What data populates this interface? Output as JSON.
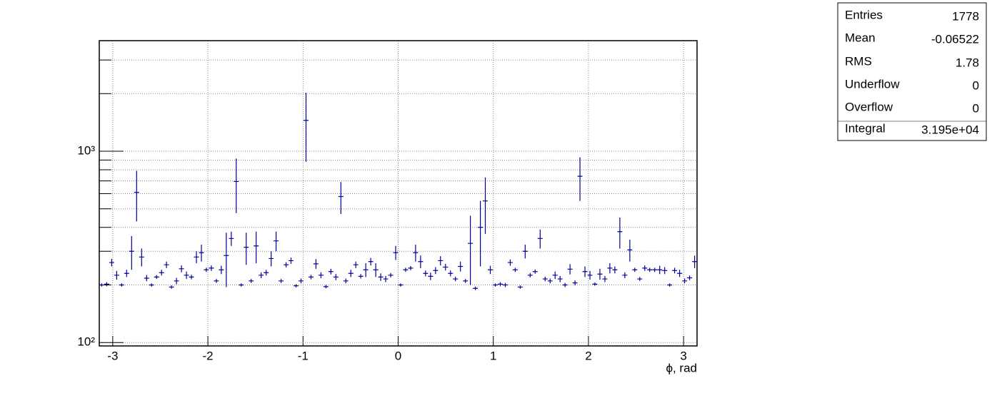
{
  "chart_data": {
    "type": "histogram_errors",
    "x_label": "ϕ, rad",
    "color": "#000099",
    "log_y": true,
    "grid": true,
    "xlim": [
      -3.1416,
      3.1416
    ],
    "ylim": [
      96,
      3785
    ],
    "xticks": [
      -3,
      -2,
      -1,
      0,
      1,
      2,
      3
    ],
    "yticks": [
      {
        "value": 100,
        "label": "10²"
      },
      {
        "value": 1000,
        "label": "10³"
      }
    ],
    "yminor_ticks": [
      200,
      300,
      400,
      500,
      600,
      700,
      800,
      900,
      2000,
      3000
    ],
    "bins": [
      -3.142,
      -3.09,
      -3.037,
      -2.985,
      -2.932,
      -2.88,
      -2.828,
      -2.775,
      -2.723,
      -2.67,
      -2.618,
      -2.566,
      -2.513,
      -2.461,
      -2.409,
      -2.356,
      -2.304,
      -2.251,
      -2.199,
      -2.147,
      -2.094,
      -2.042,
      -1.99,
      -1.937,
      -1.885,
      -1.833,
      -1.78,
      -1.728,
      -1.676,
      -1.623,
      -1.571,
      -1.519,
      -1.466,
      -1.414,
      -1.361,
      -1.309,
      -1.257,
      -1.204,
      -1.152,
      -1.1,
      -1.047,
      -0.995,
      -0.942,
      -0.89,
      -0.838,
      -0.785,
      -0.733,
      -0.681,
      -0.628,
      -0.576,
      -0.524,
      -0.471,
      -0.419,
      -0.367,
      -0.314,
      -0.262,
      -0.209,
      -0.157,
      -0.105,
      -0.052,
      0.0,
      0.052,
      0.105,
      0.157,
      0.209,
      0.262,
      0.314,
      0.367,
      0.419,
      0.471,
      0.524,
      0.576,
      0.628,
      0.681,
      0.733,
      0.785,
      0.838,
      0.89,
      0.942,
      0.995,
      1.047,
      1.1,
      1.152,
      1.204,
      1.257,
      1.309,
      1.361,
      1.414,
      1.466,
      1.519,
      1.571,
      1.623,
      1.676,
      1.728,
      1.78,
      1.833,
      1.885,
      1.937,
      1.99,
      2.042,
      2.094,
      2.147,
      2.199,
      2.251,
      2.304,
      2.356,
      2.409,
      2.461,
      2.513,
      2.566,
      2.618,
      2.67,
      2.723,
      2.775,
      2.828,
      2.88,
      2.932,
      2.985,
      3.037,
      3.09,
      3.142
    ],
    "values": [
      200,
      202,
      262,
      225,
      200,
      230,
      300,
      610,
      280,
      217,
      200,
      220,
      232,
      255,
      195,
      210,
      243,
      225,
      220,
      280,
      295,
      240,
      245,
      210,
      240,
      285,
      350,
      695,
      200,
      315,
      210,
      320,
      225,
      232,
      275,
      340,
      210,
      255,
      268,
      198,
      210,
      1450,
      220,
      258,
      225,
      196,
      235,
      220,
      580,
      210,
      230,
      255,
      222,
      240,
      265,
      240,
      220,
      215,
      225,
      295,
      200,
      240,
      245,
      295,
      265,
      230,
      222,
      238,
      268,
      248,
      230,
      215,
      250,
      210,
      330,
      192,
      400,
      550,
      240,
      200,
      202,
      200,
      262,
      240,
      195,
      300,
      225,
      235,
      350,
      215,
      210,
      225,
      215,
      200,
      242,
      205,
      740,
      235,
      225,
      202,
      228,
      215,
      245,
      240,
      380,
      225,
      305,
      240,
      215,
      245,
      240,
      240,
      240,
      238,
      200,
      238,
      230,
      210,
      218,
      265
    ],
    "errors": [
      4,
      5,
      12,
      12,
      4,
      10,
      60,
      180,
      30,
      8,
      4,
      5,
      8,
      10,
      4,
      8,
      10,
      10,
      6,
      20,
      30,
      6,
      8,
      5,
      12,
      90,
      30,
      220,
      4,
      60,
      5,
      60,
      8,
      8,
      25,
      40,
      5,
      8,
      10,
      4,
      6,
      570,
      6,
      15,
      8,
      4,
      8,
      8,
      110,
      6,
      10,
      10,
      6,
      20,
      12,
      20,
      10,
      8,
      6,
      25,
      4,
      6,
      6,
      30,
      20,
      8,
      10,
      10,
      15,
      10,
      8,
      6,
      15,
      5,
      130,
      4,
      150,
      180,
      12,
      4,
      5,
      5,
      10,
      6,
      4,
      25,
      6,
      6,
      40,
      6,
      6,
      10,
      8,
      5,
      15,
      6,
      190,
      15,
      12,
      4,
      15,
      8,
      15,
      10,
      70,
      8,
      40,
      6,
      5,
      8,
      6,
      6,
      12,
      10,
      4,
      8,
      10,
      6,
      6,
      20
    ],
    "stats": [
      {
        "label": "Entries",
        "value": "1778"
      },
      {
        "label": "Mean",
        "value": "-0.06522"
      },
      {
        "label": "RMS",
        "value": "1.78"
      },
      {
        "label": "Underflow",
        "value": "0"
      },
      {
        "label": "Overflow",
        "value": "0"
      },
      {
        "label": "Integral",
        "value": "3.195e+04"
      }
    ]
  }
}
